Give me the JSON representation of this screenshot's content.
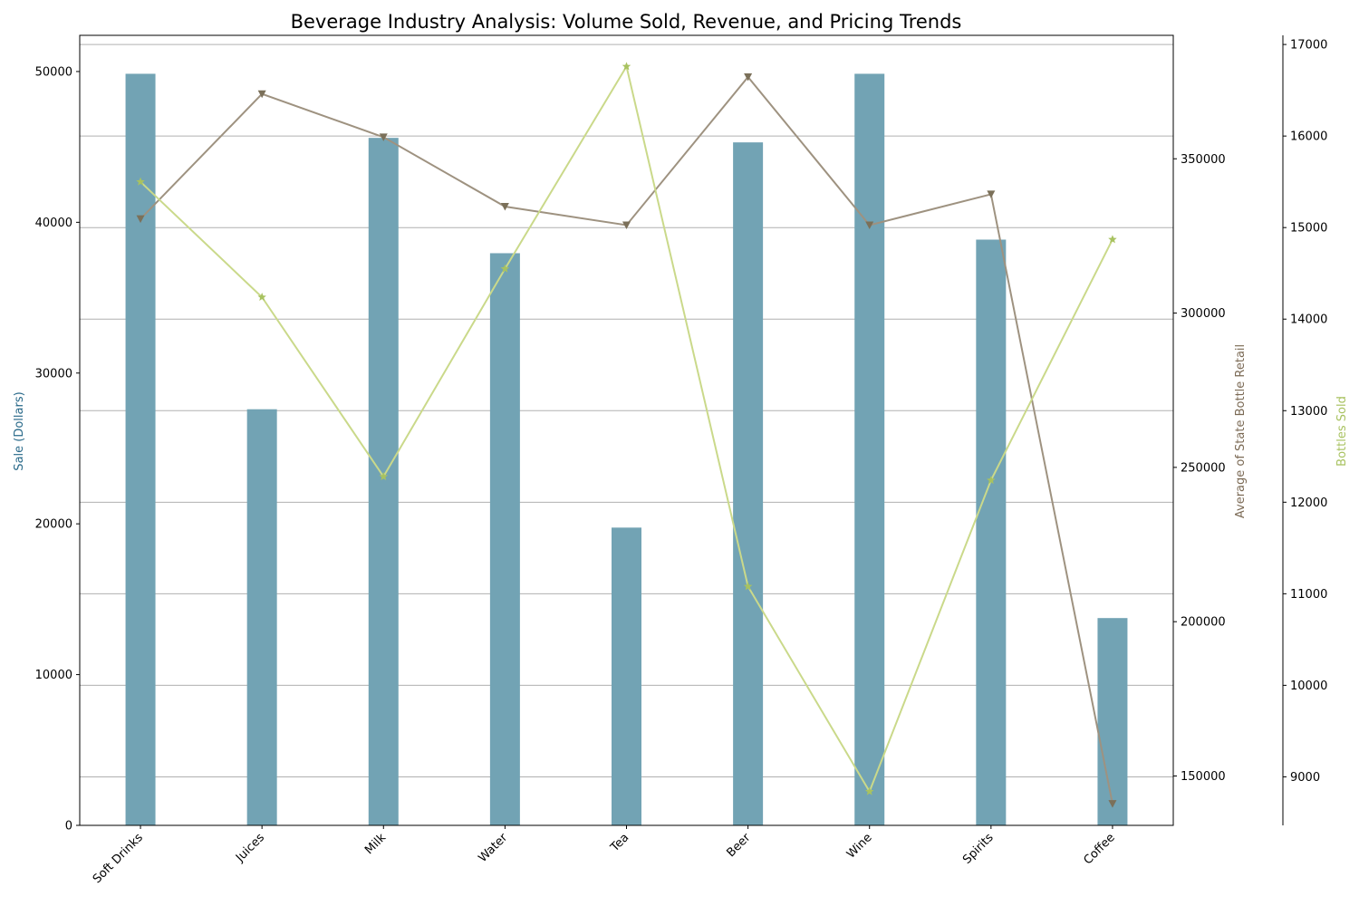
{
  "chart_data": {
    "type": "bar",
    "title": "Beverage Industry Analysis: Volume Sold, Revenue, and Pricing Trends",
    "categories": [
      "Soft Drinks",
      "Juices",
      "Milk",
      "Water",
      "Tea",
      "Beer",
      "Wine",
      "Spirits",
      "Coffee"
    ],
    "series": [
      {
        "name": "Sale (Dollars)",
        "type": "bar",
        "axis": "left",
        "color": "#72a3b4",
        "values": [
          49850,
          27600,
          45600,
          37950,
          19750,
          45300,
          49850,
          38850,
          13750
        ]
      },
      {
        "name": "Average of State Bottle Retail",
        "type": "line",
        "axis": "right",
        "marker": "triangle-down",
        "color": "#9e9280",
        "marker_color": "#7b7059",
        "values": [
          330500,
          371000,
          357000,
          334500,
          328500,
          376500,
          328500,
          338500,
          141000
        ]
      },
      {
        "name": "Bottles Sold",
        "type": "line",
        "axis": "right-outer",
        "marker": "star",
        "color": "#cad98a",
        "marker_color": "#a8c260",
        "values": [
          15500,
          14240,
          12280,
          14550,
          16760,
          11080,
          8840,
          12240,
          14870
        ]
      }
    ],
    "axes": {
      "left": {
        "label": "Sale (Dollars)",
        "label_color": "#2a6a8a",
        "range": [
          0,
          52400
        ],
        "ticks": [
          "0",
          "10000",
          "20000",
          "30000",
          "40000",
          "50000"
        ]
      },
      "right": {
        "label": "Average of State Bottle Retail",
        "label_color": "#7b6a55",
        "range": [
          134000,
          390000
        ],
        "ticks": [
          "150000",
          "200000",
          "250000",
          "300000",
          "350000"
        ]
      },
      "right_outer": {
        "label": "Bottles Sold",
        "label_color": "#a8c260",
        "range": [
          8470,
          17100
        ],
        "ticks": [
          "9000",
          "10000",
          "11000",
          "12000",
          "13000",
          "14000",
          "15000",
          "16000",
          "17000"
        ]
      }
    },
    "grid": true
  }
}
